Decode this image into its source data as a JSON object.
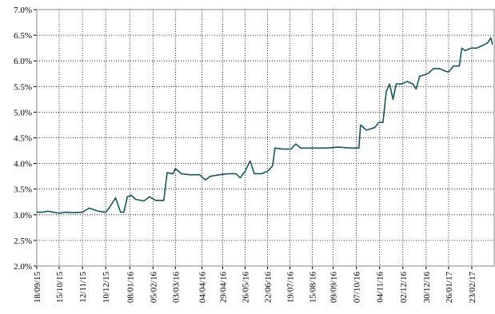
{
  "chart_data": {
    "type": "line",
    "color": "#15595a",
    "grid": true,
    "x": [
      "18/09/15",
      "25/09/15",
      "01/10/15",
      "08/10/15",
      "15/10/15",
      "22/10/15",
      "01/11/15",
      "12/11/15",
      "20/11/15",
      "01/12/15",
      "10/12/15",
      "14/12/15",
      "22/12/15",
      "28/12/15",
      "01/01/16",
      "05/01/16",
      "10/01/16",
      "15/01/16",
      "25/01/16",
      "01/02/16",
      "08/02/16",
      "18/02/16",
      "22/02/16",
      "29/02/16",
      "03/03/16",
      "10/03/16",
      "20/03/16",
      "01/04/16",
      "08/04/16",
      "14/04/16",
      "25/04/16",
      "05/05/16",
      "15/05/16",
      "20/05/16",
      "26/05/16",
      "01/06/16",
      "06/06/16",
      "15/06/16",
      "22/06/16",
      "28/06/16",
      "01/07/16",
      "10/07/16",
      "20/07/16",
      "26/07/16",
      "01/08/16",
      "15/08/16",
      "01/09/16",
      "15/09/16",
      "01/10/16",
      "10/10/16",
      "12/10/16",
      "19/10/16",
      "29/10/16",
      "03/11/16",
      "08/11/16",
      "12/11/16",
      "16/11/16",
      "20/11/16",
      "24/11/16",
      "01/12/16",
      "07/12/16",
      "14/12/16",
      "18/12/16",
      "22/12/16",
      "01/01/17",
      "08/01/17",
      "15/01/17",
      "22/01/17",
      "26/01/17",
      "01/02/17",
      "08/02/17",
      "11/02/17",
      "15/02/17",
      "22/02/17",
      "01/03/17",
      "08/03/17",
      "14/03/17",
      "18/03/17",
      "20/03/17"
    ],
    "values": [
      3.05,
      3.05,
      3.07,
      3.05,
      3.03,
      3.05,
      3.04,
      3.05,
      3.13,
      3.07,
      3.05,
      3.13,
      3.33,
      3.05,
      3.05,
      3.35,
      3.38,
      3.3,
      3.27,
      3.35,
      3.28,
      3.28,
      3.82,
      3.8,
      3.9,
      3.8,
      3.78,
      3.78,
      3.68,
      3.75,
      3.78,
      3.8,
      3.8,
      3.72,
      3.85,
      4.05,
      3.8,
      3.8,
      3.85,
      3.95,
      4.3,
      4.28,
      4.28,
      4.38,
      4.3,
      4.3,
      4.3,
      4.32,
      4.3,
      4.3,
      4.75,
      4.65,
      4.7,
      4.8,
      4.8,
      5.4,
      5.55,
      5.25,
      5.55,
      5.55,
      5.6,
      5.55,
      5.45,
      5.7,
      5.75,
      5.85,
      5.85,
      5.8,
      5.78,
      5.9,
      5.9,
      6.25,
      6.2,
      6.25,
      6.25,
      6.3,
      6.35,
      6.45,
      6.32
    ],
    "xlim": [
      "18/09/15",
      "22/03/17"
    ],
    "xticks": [
      "18/09/15",
      "15/10/15",
      "12/11/15",
      "10/12/15",
      "08/01/16",
      "05/02/16",
      "03/03/16",
      "04/04/16",
      "29/04/16",
      "26/05/16",
      "22/06/16",
      "19/07/16",
      "15/08/16",
      "09/09/16",
      "07/10/16",
      "04/11/16",
      "02/12/16",
      "30/12/16",
      "26/01/17",
      "23/02/17"
    ],
    "ylim": [
      2,
      7
    ],
    "yticks": [
      {
        "value": 2,
        "label": "2.0%"
      },
      {
        "value": 2.5,
        "label": "2.5%"
      },
      {
        "value": 3,
        "label": "3.0%"
      },
      {
        "value": 3.5,
        "label": "3.5%"
      },
      {
        "value": 4,
        "label": "4.0%"
      },
      {
        "value": 4.5,
        "label": "4.5%"
      },
      {
        "value": 5,
        "label": "5.0%"
      },
      {
        "value": 5.5,
        "label": "5.5%"
      },
      {
        "value": 6,
        "label": "6.0%"
      },
      {
        "value": 6.5,
        "label": "6.5%"
      },
      {
        "value": 7,
        "label": "7.0%"
      }
    ]
  }
}
